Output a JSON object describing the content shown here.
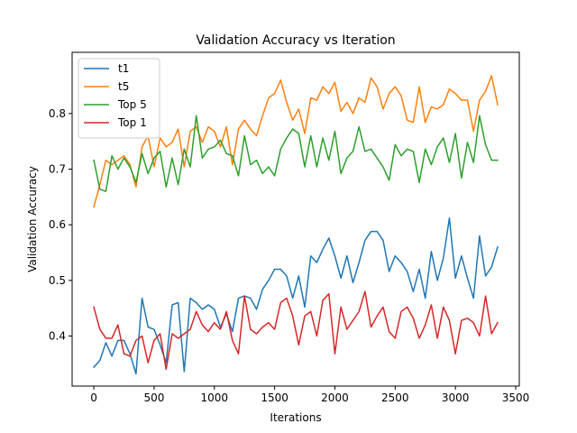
{
  "chart_data": {
    "type": "line",
    "title": "Validation Accuracy vs Iteration",
    "xlabel": "Iterations",
    "ylabel": "Validation Accuracy",
    "xlim": [
      -180,
      3530
    ],
    "ylim": [
      0.31,
      0.91
    ],
    "xticks": [
      0,
      500,
      1000,
      1500,
      2000,
      2500,
      3000,
      3500
    ],
    "yticks": [
      0.4,
      0.5,
      0.6,
      0.7,
      0.8
    ],
    "ytick_labels": [
      "0.4",
      "0.5",
      "0.6",
      "0.7",
      "0.8"
    ],
    "grid": false,
    "legend_position": "upper-left",
    "x": [
      0,
      50,
      100,
      150,
      200,
      250,
      300,
      350,
      400,
      450,
      500,
      550,
      600,
      650,
      700,
      750,
      800,
      850,
      900,
      950,
      1000,
      1050,
      1100,
      1150,
      1200,
      1250,
      1300,
      1350,
      1400,
      1450,
      1500,
      1550,
      1600,
      1650,
      1700,
      1750,
      1800,
      1850,
      1900,
      1950,
      2000,
      2050,
      2100,
      2150,
      2200,
      2250,
      2300,
      2350,
      2400,
      2450,
      2500,
      2550,
      2600,
      2650,
      2700,
      2750,
      2800,
      2850,
      2900,
      2950,
      3000,
      3050,
      3100,
      3150,
      3200,
      3250,
      3300,
      3350
    ],
    "series": [
      {
        "name": "t1",
        "color": "#1f77b4",
        "values": [
          0.344,
          0.356,
          0.388,
          0.364,
          0.392,
          0.392,
          0.368,
          0.332,
          0.468,
          0.416,
          0.412,
          0.384,
          0.352,
          0.456,
          0.46,
          0.336,
          0.468,
          0.46,
          0.448,
          0.456,
          0.448,
          0.416,
          0.44,
          0.408,
          0.468,
          0.472,
          0.468,
          0.448,
          0.484,
          0.5,
          0.52,
          0.52,
          0.508,
          0.468,
          0.508,
          0.452,
          0.544,
          0.532,
          0.556,
          0.576,
          0.544,
          0.504,
          0.544,
          0.496,
          0.532,
          0.572,
          0.588,
          0.588,
          0.572,
          0.516,
          0.544,
          0.532,
          0.516,
          0.48,
          0.52,
          0.468,
          0.552,
          0.5,
          0.54,
          0.612,
          0.504,
          0.544,
          0.504,
          0.468,
          0.58,
          0.508,
          0.524,
          0.56
        ]
      },
      {
        "name": "t5",
        "color": "#ff7f0e",
        "values": [
          0.632,
          0.672,
          0.716,
          0.708,
          0.716,
          0.724,
          0.708,
          0.668,
          0.74,
          0.76,
          0.704,
          0.756,
          0.74,
          0.748,
          0.772,
          0.704,
          0.768,
          0.776,
          0.748,
          0.776,
          0.768,
          0.74,
          0.776,
          0.708,
          0.772,
          0.788,
          0.772,
          0.76,
          0.796,
          0.828,
          0.836,
          0.86,
          0.82,
          0.788,
          0.808,
          0.764,
          0.828,
          0.824,
          0.848,
          0.836,
          0.856,
          0.804,
          0.82,
          0.8,
          0.828,
          0.82,
          0.864,
          0.848,
          0.808,
          0.836,
          0.848,
          0.832,
          0.788,
          0.784,
          0.848,
          0.784,
          0.812,
          0.808,
          0.816,
          0.844,
          0.836,
          0.824,
          0.824,
          0.768,
          0.824,
          0.84,
          0.868,
          0.816
        ]
      },
      {
        "name": "Top 5",
        "color": "#2ca02c",
        "values": [
          0.716,
          0.664,
          0.66,
          0.724,
          0.7,
          0.72,
          0.704,
          0.676,
          0.728,
          0.692,
          0.72,
          0.732,
          0.668,
          0.72,
          0.672,
          0.736,
          0.704,
          0.796,
          0.72,
          0.736,
          0.74,
          0.752,
          0.728,
          0.724,
          0.688,
          0.76,
          0.708,
          0.716,
          0.692,
          0.704,
          0.688,
          0.736,
          0.756,
          0.772,
          0.764,
          0.704,
          0.76,
          0.704,
          0.756,
          0.716,
          0.768,
          0.692,
          0.72,
          0.732,
          0.776,
          0.732,
          0.736,
          0.72,
          0.704,
          0.68,
          0.744,
          0.724,
          0.736,
          0.732,
          0.676,
          0.736,
          0.708,
          0.74,
          0.756,
          0.712,
          0.764,
          0.684,
          0.748,
          0.712,
          0.796,
          0.744,
          0.716,
          0.716
        ]
      },
      {
        "name": "Top 1",
        "color": "#d62728",
        "values": [
          0.452,
          0.412,
          0.396,
          0.396,
          0.42,
          0.368,
          0.364,
          0.392,
          0.4,
          0.352,
          0.392,
          0.404,
          0.34,
          0.404,
          0.396,
          0.404,
          0.412,
          0.444,
          0.42,
          0.408,
          0.424,
          0.412,
          0.444,
          0.392,
          0.368,
          0.472,
          0.412,
          0.404,
          0.416,
          0.424,
          0.412,
          0.46,
          0.468,
          0.436,
          0.384,
          0.436,
          0.444,
          0.4,
          0.464,
          0.476,
          0.368,
          0.452,
          0.412,
          0.428,
          0.444,
          0.48,
          0.416,
          0.436,
          0.452,
          0.408,
          0.396,
          0.444,
          0.452,
          0.432,
          0.396,
          0.42,
          0.456,
          0.396,
          0.452,
          0.428,
          0.368,
          0.428,
          0.432,
          0.424,
          0.4,
          0.472,
          0.404,
          0.424
        ]
      }
    ]
  }
}
